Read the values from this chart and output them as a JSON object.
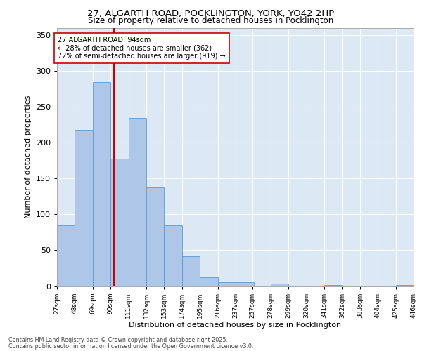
{
  "title_line1": "27, ALGARTH ROAD, POCKLINGTON, YORK, YO42 2HP",
  "title_line2": "Size of property relative to detached houses in Pocklington",
  "xlabel": "Distribution of detached houses by size in Pocklington",
  "ylabel": "Number of detached properties",
  "bin_edges": [
    27,
    48,
    69,
    90,
    111,
    132,
    153,
    174,
    195,
    216,
    237,
    257,
    278,
    299,
    320,
    341,
    362,
    383,
    404,
    425,
    446
  ],
  "bar_heights": [
    85,
    218,
    285,
    178,
    235,
    138,
    85,
    42,
    12,
    5,
    5,
    0,
    3,
    0,
    0,
    1,
    0,
    0,
    0,
    1
  ],
  "bar_color": "#aec6e8",
  "bar_edge_color": "#5b9bd5",
  "vline_x": 94,
  "vline_color": "#cc0000",
  "annotation_text": "27 ALGARTH ROAD: 94sqm\n← 28% of detached houses are smaller (362)\n72% of semi-detached houses are larger (919) →",
  "annotation_box_color": "#ffffff",
  "annotation_box_edge": "#cc0000",
  "ylim": [
    0,
    360
  ],
  "yticks": [
    0,
    50,
    100,
    150,
    200,
    250,
    300,
    350
  ],
  "background_color": "#dce9f5",
  "footer_line1": "Contains HM Land Registry data © Crown copyright and database right 2025.",
  "footer_line2": "Contains public sector information licensed under the Open Government Licence v3.0.",
  "tick_labels": [
    "27sqm",
    "48sqm",
    "69sqm",
    "90sqm",
    "111sqm",
    "132sqm",
    "153sqm",
    "174sqm",
    "195sqm",
    "216sqm",
    "237sqm",
    "257sqm",
    "278sqm",
    "299sqm",
    "320sqm",
    "341sqm",
    "362sqm",
    "383sqm",
    "404sqm",
    "425sqm",
    "446sqm"
  ]
}
